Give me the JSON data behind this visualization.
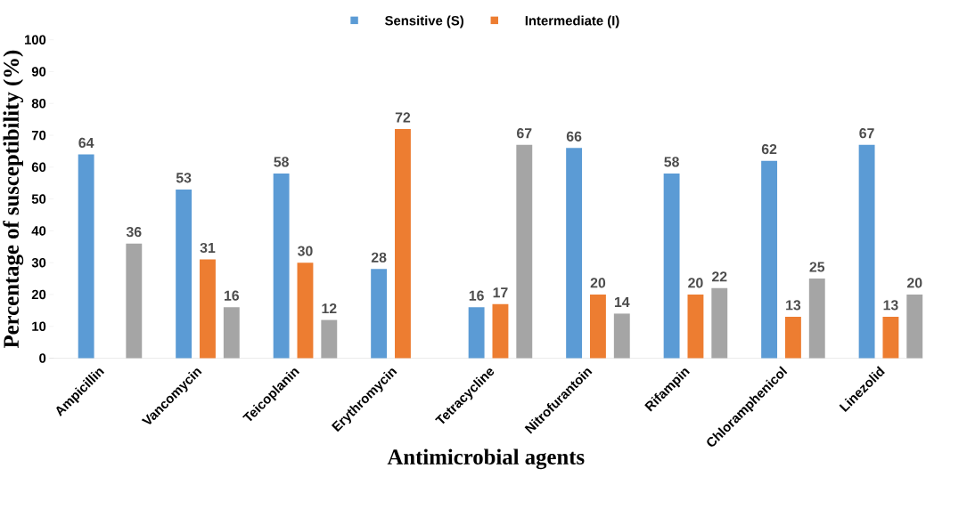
{
  "chart_data": {
    "type": "bar",
    "xlabel": "Antimicrobial agents",
    "ylabel": "Percentage of susceptibility (%)",
    "categories": [
      "Ampicillin",
      "Vancomycin",
      "Teicoplanin",
      "Erythromycin",
      "Tetracycline",
      "Nitrofurantoin",
      "Rifampin",
      "Chloramphenicol",
      "Linezolid"
    ],
    "series": [
      {
        "name": "Sensitive (S)",
        "color": "#5b9bd5",
        "values": [
          64,
          53,
          58,
          28,
          16,
          66,
          58,
          62,
          67
        ]
      },
      {
        "name": "Intermediate (I)",
        "color": "#ed7d31",
        "values": [
          null,
          31,
          30,
          72,
          17,
          20,
          20,
          13,
          13
        ]
      },
      {
        "color": "#a5a5a5",
        "values": [
          36,
          16,
          12,
          null,
          67,
          14,
          22,
          25,
          20
        ]
      }
    ],
    "ylim": [
      0,
      100
    ],
    "yticks": [
      0,
      10,
      20,
      30,
      40,
      50,
      60,
      70,
      80,
      90,
      100
    ],
    "data_labels": true,
    "legend": "top",
    "grid": false
  }
}
